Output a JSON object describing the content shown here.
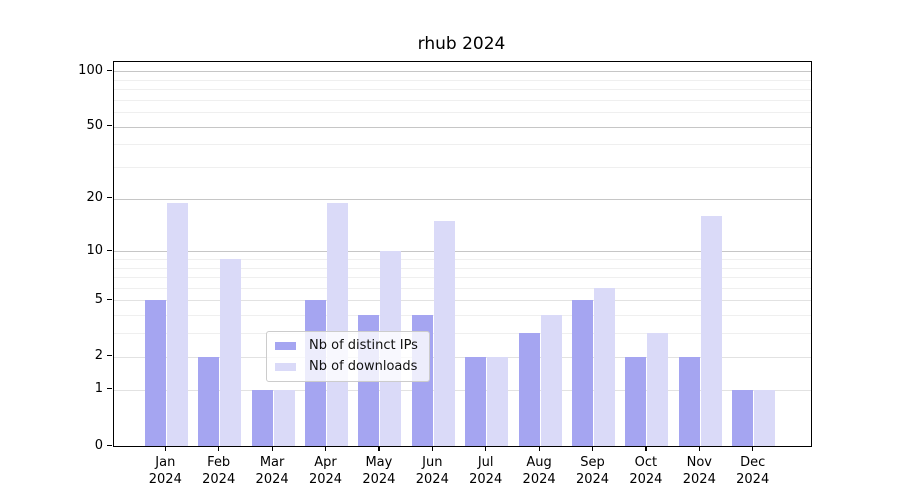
{
  "title": "rhub 2024",
  "chart_data": {
    "type": "bar",
    "title": "rhub 2024",
    "xlabel": "",
    "ylabel": "",
    "y_scale": "log1p",
    "ylim": [
      0,
      112
    ],
    "y_ticks": [
      0,
      1,
      2,
      5,
      10,
      20,
      50,
      100
    ],
    "grid": {
      "major": [
        10,
        20,
        50,
        100
      ],
      "mid": [
        1,
        2,
        5
      ],
      "minor": [
        3,
        4,
        6,
        7,
        8,
        9,
        30,
        40,
        60,
        70,
        80,
        90
      ]
    },
    "categories": [
      "Jan 2024",
      "Feb 2024",
      "Mar 2024",
      "Apr 2024",
      "May 2024",
      "Jun 2024",
      "Jul 2024",
      "Aug 2024",
      "Sep 2024",
      "Oct 2024",
      "Nov 2024",
      "Dec 2024"
    ],
    "series": [
      {
        "name": "Nb of distinct IPs",
        "color": "#a5a5f1",
        "values": [
          5,
          2,
          1,
          5,
          4,
          4,
          2,
          3,
          5,
          2,
          2,
          1
        ]
      },
      {
        "name": "Nb of downloads",
        "color": "#dadaf8",
        "values": [
          19,
          9,
          1,
          19,
          10,
          15,
          2,
          4,
          6,
          3,
          16,
          1
        ]
      }
    ],
    "legend_position": "lower center inside plot",
    "grid_on": true
  },
  "colors": {
    "background": "#ffffff",
    "axis": "#000000",
    "grid_major": "#c6c6c6",
    "grid_minor": "#efefef",
    "series_ips": "#a5a5f1",
    "series_downloads": "#dadaf8"
  }
}
